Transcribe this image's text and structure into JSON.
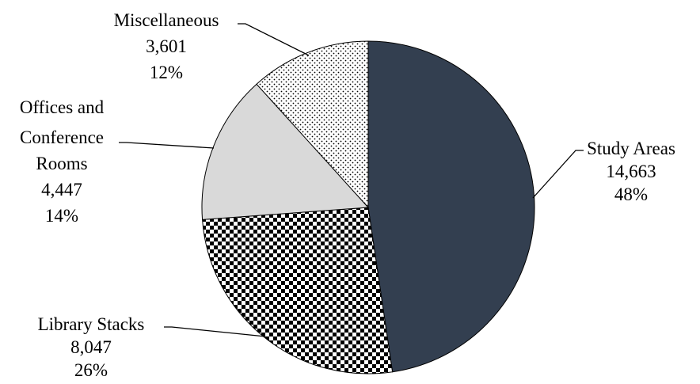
{
  "chart_data": {
    "type": "pie",
    "title": "",
    "slices": [
      {
        "label": "Study Areas",
        "value": 14663,
        "value_text": "14,663",
        "percent_text": "48%",
        "fill": "dark-navy",
        "color": "#333f50"
      },
      {
        "label": "Library Stacks",
        "value": 8047,
        "value_text": "8,047",
        "percent_text": "26%",
        "fill": "checkerboard",
        "color": "#000000"
      },
      {
        "label": "Offices and Conference Rooms",
        "label_lines": [
          "Offices and",
          "Conference",
          "Rooms"
        ],
        "value": 4447,
        "value_text": "4,447",
        "percent_text": "14%",
        "fill": "light-gray",
        "color": "#d9d9d9"
      },
      {
        "label": "Miscellaneous",
        "value": 3601,
        "value_text": "3,601",
        "percent_text": "12%",
        "fill": "dotted",
        "color": "#000000"
      }
    ],
    "start_angle_deg": 0,
    "direction": "clockwise",
    "legend": "none",
    "data_labels": "outside with leader lines"
  }
}
